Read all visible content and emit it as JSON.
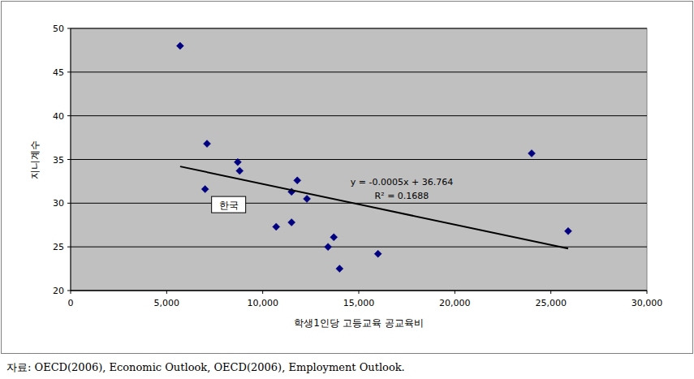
{
  "chart_data": {
    "type": "scatter",
    "x_label": "학생1인당 고등교육 공교육비",
    "y_label": "지니계수",
    "source": "자료: OECD(2006), Economic Outlook, OECD(2006), Employment Outlook.",
    "annotations": [
      "y = -0.0005x + 36.764",
      "R² = 0.1688"
    ],
    "xlim": [
      0,
      30000
    ],
    "xticks": [
      0,
      {
        "value": 5000,
        "label": "5,000"
      },
      {
        "value": 10000,
        "label": "10,000"
      },
      {
        "value": 15000,
        "label": "15,000"
      },
      {
        "value": 20000,
        "label": "20,000"
      },
      {
        "value": 25000,
        "label": "25,000"
      },
      {
        "value": 30000,
        "label": "30,000"
      }
    ],
    "ylim": [
      20,
      50
    ],
    "yticks": [
      20,
      25,
      30,
      35,
      40,
      45,
      50
    ],
    "grid": true,
    "series": [
      {
        "type": "scatter",
        "color": "#000080",
        "marker": "diamond",
        "x": [
          5700,
          7100,
          7000,
          8700,
          8800,
          10700,
          11500,
          11500,
          11800,
          12300,
          13400,
          13700,
          14000,
          16000,
          24000,
          25900
        ],
        "values": [
          48.0,
          36.8,
          31.6,
          34.7,
          33.7,
          27.3,
          31.3,
          27.8,
          32.6,
          30.5,
          25.0,
          26.1,
          22.5,
          24.2,
          35.7,
          26.8
        ],
        "point_labels": [
          null,
          null,
          "한국",
          null,
          null,
          null,
          null,
          null,
          null,
          null,
          null,
          null,
          null,
          null,
          null,
          null
        ]
      },
      {
        "type": "line",
        "color": "#000000",
        "line_style": "solid",
        "x": [
          5700,
          25900
        ],
        "values": [
          34.2,
          24.8
        ]
      }
    ]
  }
}
